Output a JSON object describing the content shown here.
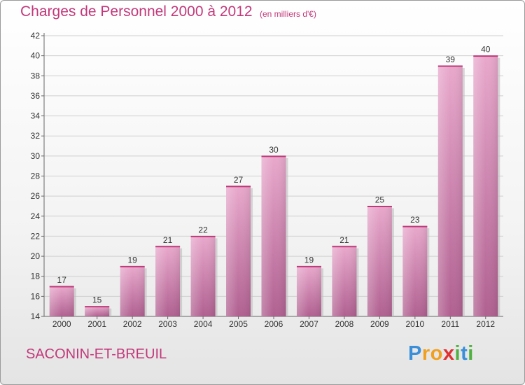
{
  "chart_data": {
    "type": "bar",
    "title": "Charges de Personnel 2000 à 2012",
    "subtitle": "(en milliers d'€)",
    "categories": [
      "2000",
      "2001",
      "2002",
      "2003",
      "2004",
      "2005",
      "2006",
      "2007",
      "2008",
      "2009",
      "2010",
      "2011",
      "2012"
    ],
    "values": [
      17,
      15,
      19,
      21,
      22,
      27,
      30,
      19,
      21,
      25,
      23,
      39,
      40
    ],
    "ylim": [
      14,
      42
    ],
    "yticks": [
      14,
      16,
      18,
      20,
      22,
      24,
      26,
      28,
      30,
      32,
      34,
      36,
      38,
      40,
      42
    ],
    "grid": true,
    "xlabel": "",
    "ylabel": ""
  },
  "commune": "SACONIN-ET-BREUIL",
  "logo": {
    "text": "Proxiti",
    "letters": [
      {
        "ch": "P",
        "color": "#3a8fd8"
      },
      {
        "ch": "r",
        "color": "#f0a020"
      },
      {
        "ch": "o",
        "color": "#f0a020"
      },
      {
        "ch": "x",
        "color": "#e03030"
      },
      {
        "ch": "i",
        "color": "#50b040"
      },
      {
        "ch": "t",
        "color": "#3a8fd8"
      },
      {
        "ch": "i",
        "color": "#50b040"
      }
    ]
  },
  "colors": {
    "accent": "#c2387a",
    "bar_light": "#e8a8cc",
    "bar_dark": "#b06090"
  }
}
